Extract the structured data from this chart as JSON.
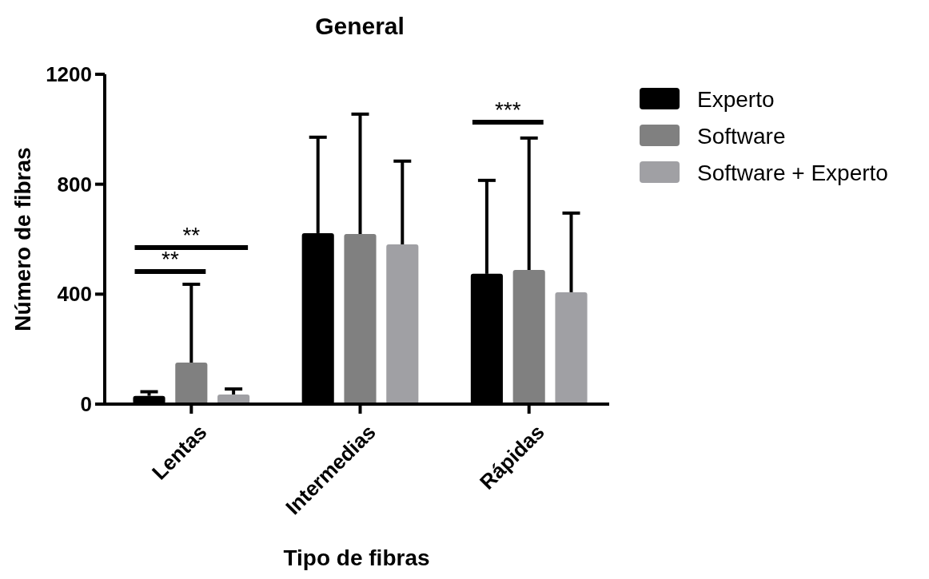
{
  "chart_data": {
    "type": "bar",
    "title": "General",
    "xlabel": "Tipo de fibras",
    "ylabel": "Número de fibras",
    "categories": [
      "Lentas",
      "Intermedias",
      "Rápidas"
    ],
    "series": [
      {
        "name": "Experto",
        "color": "#000000",
        "values": [
          30,
          622,
          474
        ],
        "errors": [
          15,
          349,
          340
        ]
      },
      {
        "name": "Software",
        "color": "#808080",
        "values": [
          151,
          619,
          488
        ],
        "errors": [
          285,
          436,
          480
        ]
      },
      {
        "name": "Software + Experto",
        "color": "#a0a0a4",
        "values": [
          35,
          581,
          407
        ],
        "errors": [
          20,
          303,
          288
        ]
      }
    ],
    "ylim": [
      0,
      1200
    ],
    "yticks": [
      0,
      400,
      800,
      1200
    ],
    "legend": "right",
    "grid": false,
    "annotations": [
      "**",
      "**",
      "***"
    ]
  }
}
